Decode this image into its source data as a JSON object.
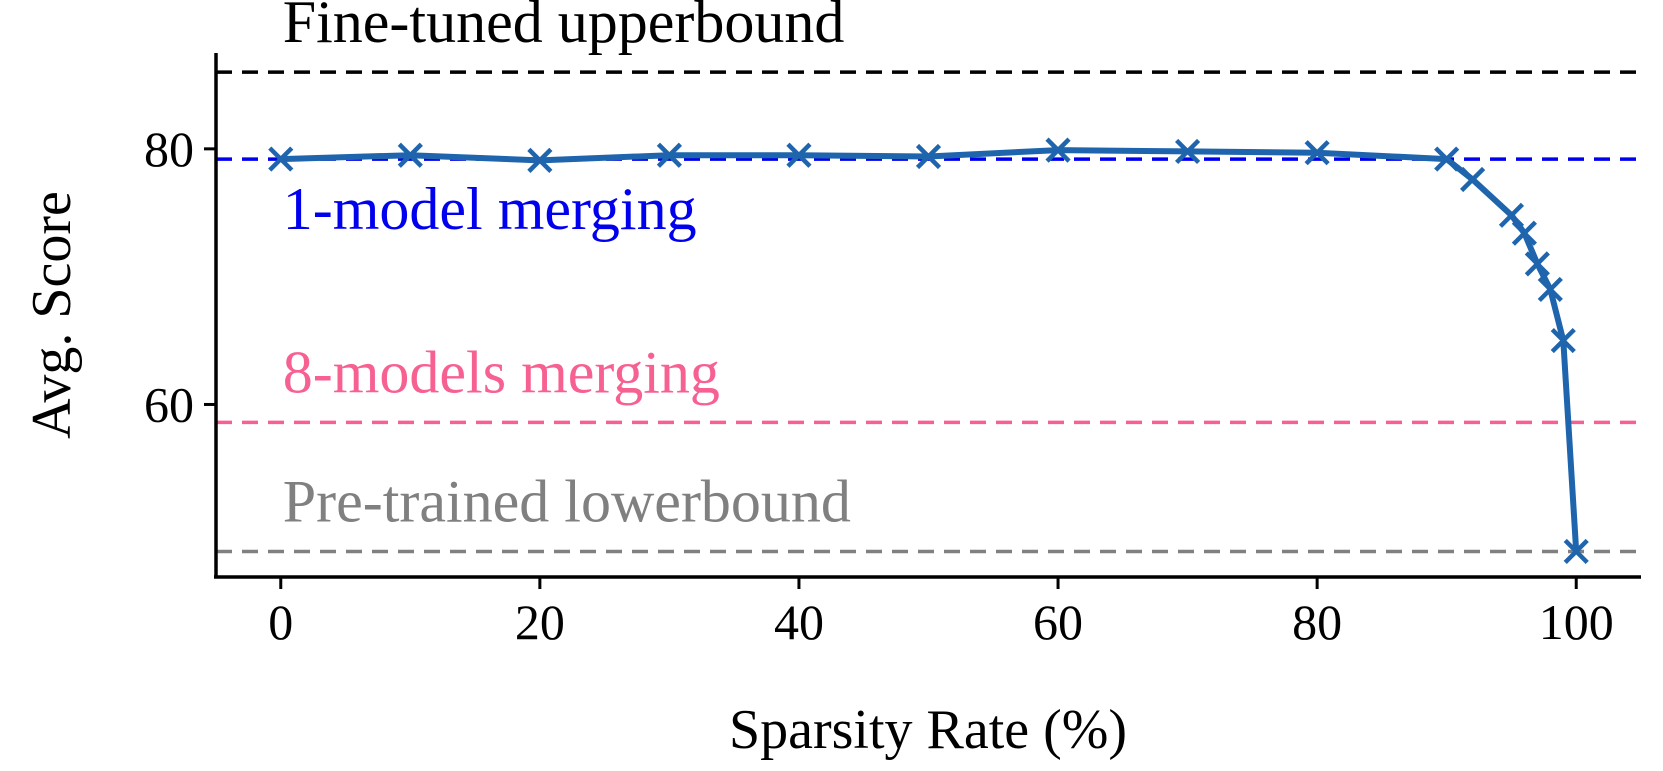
{
  "chart_data": {
    "type": "line",
    "title": "",
    "xlabel": "Sparsity Rate (%)",
    "ylabel": "Avg. Score",
    "xlim": [
      -5,
      105
    ],
    "ylim": [
      46.5,
      87.5
    ],
    "xticks": [
      0,
      20,
      40,
      60,
      80,
      100
    ],
    "yticks": [
      60,
      80
    ],
    "grid": false,
    "legend": "none",
    "series": [
      {
        "color": "#1f65ad",
        "marker": "x",
        "x": [
          0,
          10,
          20,
          30,
          40,
          50,
          60,
          70,
          80,
          90,
          92,
          95,
          96,
          97,
          98,
          99,
          100
        ],
        "y": [
          79.2,
          79.5,
          79.1,
          79.5,
          79.5,
          79.4,
          79.9,
          79.8,
          79.7,
          79.2,
          77.6,
          74.8,
          73.4,
          71.0,
          69.0,
          65.0,
          48.5
        ]
      }
    ],
    "reference_lines": [
      {
        "label": "Fine-tuned upperbound",
        "y": 86.0,
        "color": "#000000"
      },
      {
        "label": "1-model merging",
        "y": 79.2,
        "color": "#0000ee"
      },
      {
        "label": "8-models merging",
        "y": 58.6,
        "color": "#f76191"
      },
      {
        "label": "Pre-trained lowerbound",
        "y": 48.5,
        "color": "#808080"
      }
    ]
  }
}
